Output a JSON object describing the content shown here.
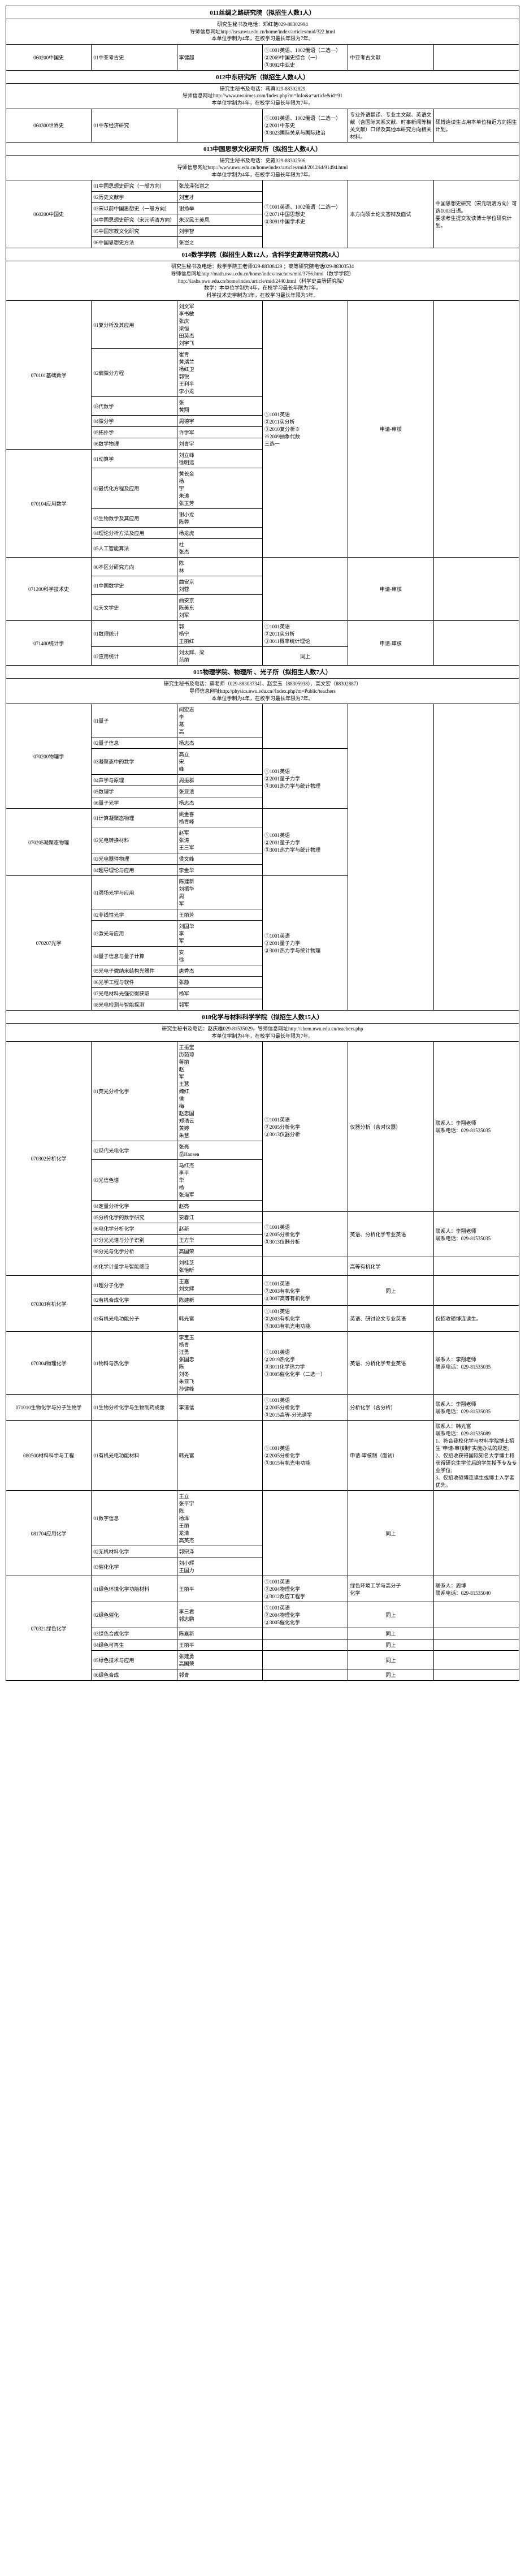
{
  "s011": {
    "title": "011丝绸之路研究院（拟招生人数1人）",
    "info": "研究生秘书及电话：邓红艳029-88302994\n导师信息网址http://isrs.nwu.edu.cn/home/index/articles/mid/322.html\n本单位学制为4年，在校学习最长年限为7年。",
    "code": "060200中国史",
    "r1_1": "01中亚考古史",
    "r1_2": "李健超",
    "r1_3": "①1001英语、1002俄语（二选一）\n②2069中国史综合（一）\n③3092中亚史",
    "r1_4": "中亚考古文献"
  },
  "s012": {
    "title": "012中东研究所（拟招生人数4人）",
    "info": "研究生秘书及电话：蒋真029-88302829\n导师信息网址http://www.nwuimes.com/Index.php?m=Info&a=article&id=91\n本单位学制为4年，在校学习最长年限为7年。",
    "code": "060300世界史",
    "r1_1": "01中东经济研究",
    "r1_2": "",
    "r1_3": "①1001英语、1002俄语（二选一）\n②2001中东史\n③3023国际关系与国际政治",
    "r1_4": "专业外语翻译、专业主文献、英语文献（含国际关系文献、时事新闻等相关文献）口译及其他本研究方向相关材料。",
    "r1_5": "硕博连读生占用本单位相近方向招生计划。"
  },
  "s013": {
    "title": "013中国思想文化研究所（拟招生人数4人）",
    "info": "研究生秘书及电话：史霞029-88302506\n导师信息网址http://www.nwu.edu.cn/home/index/articles/mid/2012/id/91494.html\n本单位学制为4年，在校学习最长年限为7年。",
    "code": "060200中国史",
    "rows": [
      {
        "c1": "01中国思想史研究（一般方向）",
        "c2": "张茂泽张岂之",
        "c3": "①1001英语、1002俄语（二选一）\n②2071中国思想史\n③3091中国学术史",
        "c4": "本方向硕士论文答辩及面试",
        "c5": "中国思想史研究（宋元明清方向）可选1003日语。\n要求考生提交攻读博士学位研究计划。"
      },
      {
        "c1": "02历史文献学",
        "c2": "刘宝才"
      },
      {
        "c1": "03宋以前中国思想史（一般方向）",
        "c2": "谢扬举"
      },
      {
        "c1": "04中国思想史研究（宋元明清方向）",
        "c2": "朱汉民王美凤"
      },
      {
        "c1": "05中国宗教文化研究",
        "c2": "刘学智"
      },
      {
        "c1": "06中国思想史方法",
        "c2": "张岂之"
      }
    ]
  },
  "s014": {
    "title": "014数学学院（拟招生人数12人，含科学史高等研究院4人）",
    "info": "研究生秘书及电话：数学学院王老师029-88308429 ；高等研究院电话029-88303534\n导师信息网址http://math.nwu.edu.cn/home/index/teachers/mid/3756.html（数学学院）\nhttp://iashs.nwu.edu.cn/home/index/article/mid/2440.html（科学史高等研究院）\n数学：本单位学制为4年，在校学习最长年限为7年。\n科学技术史学制为3年，在校学习最长年限为5年。",
    "groups": [
      {
        "code": "070101基础数学",
        "rows": [
          {
            "c1": "01复分析及其应用",
            "c2": "刘文军\n李书敏\n张庆\n梁恒\n田英杰\n刘宇飞",
            "c3": "",
            "c4": "",
            "c5": ""
          },
          {
            "c1": "02偏微分方程",
            "c2": "崔青\n黄瑞兰\n杨红卫\n郭锐\n王利平\n李小龙"
          },
          {
            "c1": "03代数学",
            "c2": "张\n黄翔"
          },
          {
            "c1": "04微分学",
            "c2": "周德宇"
          },
          {
            "c1": "05拓扑学",
            "c2": "许学军"
          },
          {
            "c1": "06数学物理",
            "c2": "刘青宇"
          }
        ]
      },
      {
        "code": "070104应用数学",
        "rows": [
          {
            "c1": "01动算学",
            "c2": "刘立峰\n徐明远",
            "c3": "①1001英语\n②2011实分析\n③2010复分析※\n※2009抽象代数\n三选一",
            "c4": "申请-审核",
            "c5": ""
          },
          {
            "c1": "02最优化方程及应用",
            "c2": "黄长金\n杨\n宇\n朱涛\n张玉芳"
          },
          {
            "c1": "03生物数学及其应用",
            "c2": "谢小龙\n陈蓉"
          },
          {
            "c1": "04理论分析方法及应用",
            "c2": "杨龙虎"
          },
          {
            "c1": "05人工智能算法",
            "c2": "杜\n张杰"
          }
        ]
      },
      {
        "code": "071200科学技术史",
        "rows": [
          {
            "c1": "00不区分研究方向",
            "c2": "陈\n林"
          },
          {
            "c1": "01中国数学史",
            "c2": "曲安京\n刘蓉",
            "c3": "",
            "c4": "申请-审核",
            "c5": ""
          },
          {
            "c1": "02天文学史",
            "c2": "曲安京\n陈美东\n刘军"
          }
        ]
      },
      {
        "code": "071400统计学",
        "rows": [
          {
            "c1": "01数理统计",
            "c2": "郭\n杨宁\n王丽红",
            "c3": "①1001英语\n②2011实分析\n③3011概率统计理论",
            "c4": "申请-审核",
            "c5": ""
          },
          {
            "c1": "02应用统计",
            "c2": "刘太辉、梁\n范丽",
            "c3": "同上",
            "c4": "",
            "c5": ""
          }
        ]
      }
    ]
  },
  "s015": {
    "title": "015物理学院、物理所 、光子所（拟招生人数7人）",
    "info": "研究生秘书及电话：薛老师（029-88303734）、赵宝玉（88305938）、高文宏（88302887）\n导师信息网址http://physics.nwu.edu.cn//Index.php?m=Public/teachers\n本单位学制为4年，在校学习最长年限为7年。",
    "groups": [
      {
        "code": "070200物理学",
        "rows": [
          {
            "c1": "01量子",
            "c2": "闫宏志\n李\n葛\n高",
            "c3": "",
            "c4": "",
            "c5": ""
          },
          {
            "c1": "02量子信息",
            "c2": "杨志杰"
          },
          {
            "c1": "03凝聚态中的数学",
            "c2": "高立\n宋\n峰",
            "c3": "①1001英语\n②2001量子力学\n③3001热力学与统计物理",
            "c4": "",
            "c5": ""
          },
          {
            "c1": "04声学与原理",
            "c2": "周振群"
          },
          {
            "c1": "05数理学",
            "c2": "张亚清"
          },
          {
            "c1": "06量子光学",
            "c2": "杨志杰"
          }
        ]
      },
      {
        "code": "070205凝聚态物理",
        "rows": [
          {
            "c1": "01计算凝聚态物理",
            "c2": "姚金喜\n杨青峰",
            "c3": "①1001英语\n②2001量子力学\n③3001热力学与统计物理",
            "c4": "",
            "c5": ""
          },
          {
            "c1": "02光电转换材料",
            "c2": "赵军\n张涛\n王三军"
          },
          {
            "c1": "03光电器件物理",
            "c2": "侯文峰"
          },
          {
            "c1": "04超导理论与应用",
            "c2": "李金华"
          }
        ]
      },
      {
        "code": "070207光学",
        "rows": [
          {
            "c1": "01强场光学与应用",
            "c2": "陈建新\n刘振华\n周\n军",
            "c3": "①1001英语\n②2001量子力学\n③3001热力学与统计物理",
            "c4": "",
            "c5": ""
          },
          {
            "c1": "02非线性光学",
            "c2": "王丽芳"
          },
          {
            "c1": "03激光与应用",
            "c2": "刘国华\n李\n军",
            "c4": ""
          },
          {
            "c1": "04量子信息与量子计算",
            "c2": "安\n徐",
            "c4": ""
          },
          {
            "c1": "05光电子微纳米结构光器件",
            "c2": "唐秀杰",
            "c4": ""
          },
          {
            "c1": "06光学工程与软件",
            "c2": "张静",
            "c4": ""
          },
          {
            "c1": "07光电材料光强衍衡获取",
            "c2": "杨军",
            "c4": ""
          },
          {
            "c1": "08光电检测与智能探测",
            "c2": "郭军",
            "c4": ""
          }
        ]
      }
    ]
  },
  "s018": {
    "title": "018化学与材料科学学院（拟招生人数15人）",
    "info": "研究生秘书及电话：赵庆雄029-81535029，导师信息网址http://chem.nwu.edu.cn/teachers.php\n本单位学制为4年，在校学习最长年限为7年。",
    "groups": [
      {
        "code": "070302分析化学",
        "rows": [
          {
            "c1": "01荧光分析化学",
            "c2": "王振堂\n历茹琼\n蒋丽\n赵\n军\n王慧\n魏红\n侯\n梅\n赵忠国\n郑浩云\n黄婷\n朱慧",
            "c3": "①1001英语\n②2005分析化学\n③3013仪器分析",
            "c4": "仪器分析（含对仪器）",
            "c5": "联系人：李翔老师\n联系电话：029-81535035"
          },
          {
            "c1": "02现代光电化学",
            "c2": "张亮\n岳Hansen"
          },
          {
            "c1": "03光信色谱",
            "c2": "马红杰\n李平\n华\n杨\n张海军"
          },
          {
            "c1": "04定量分析化学",
            "c2": "赵亮"
          },
          {
            "c1": "05分析化学的数学研究",
            "c2": "安春江",
            "c3": "①1001英语\n②2005分析化学\n③3013仪器分析",
            "c4": "英语、分析化学专业英语",
            "c5": "联系人：李翔老师\n联系电话：029-81535035"
          },
          {
            "c1": "06电化学分析化学",
            "c2": "赵新"
          },
          {
            "c1": "07分光光谱与分子识别",
            "c2": "王方华"
          },
          {
            "c1": "08分光与化学分析",
            "c2": "高国荣"
          },
          {
            "c1": "09化学计量学与智能感应",
            "c2": "刘桂芝\n张怡昕",
            "c4": "高等有机化学"
          }
        ]
      },
      {
        "code": "070303有机化学",
        "rows": [
          {
            "c1": "01超分子化学",
            "c2": "王嘉\n刘文辉",
            "c3": "①1001英语\n②2003有机化学\n③3007高等有机化学",
            "c4": "同上",
            "c5": ""
          },
          {
            "c1": "02有机合成化学",
            "c2": "陈建新"
          },
          {
            "c1": "03有机光电功能分子",
            "c2": "韩光富",
            "c3": "①1001英语\n②2003有机化学\n③3003有机光电功能",
            "c4": "英语、研讨论文专业英语",
            "c5": "仅招收硕博连读生。"
          }
        ]
      },
      {
        "code": "070304物理化学",
        "rows": [
          {
            "c1": "01物料与热化学",
            "c2": "李宝玉\n杨青\n汪勇\n张国忠\n陈\n刘冬\n朱亚飞\n孙健峰",
            "c3": "①1001英语\n②2019热化学\n③3011化学热力学\n③3005催化化学（二选一）",
            "c4": "英语、分析化学专业英语",
            "c5": "联系人：李翔老师\n联系电话：029-81535035"
          }
        ]
      },
      {
        "code": "071010生物化学与分子生物学",
        "rows": [
          {
            "c1": "01生物分析化学与生物制药成像",
            "c2": "李道信",
            "c3": "①1001英语\n②2005分析化学\n③2015高等-分光谱学",
            "c4": "分析化学（含分析）",
            "c5": "联系人：李翔老师\n联系电话：029-81535035"
          }
        ]
      },
      {
        "code": "080500材料科学与工程",
        "rows": [
          {
            "c1": "01有机光电功能材料",
            "c2": "韩光富",
            "c3": "①1001英语\n②2005分析化学\n③3015有机光电功能",
            "c4": "申请-审核制（面试）",
            "c5": "联系人：韩光富\n联系电话：029-81535089\n1、符合我校化学与材料学院博士招生\"申请-审核制\"实施办法的规定;\n2、仅招收获得国际知名大学博士和获得研究生学位后的学生授予专及专业学位;\n3、仅招收硕博连读生或博士入学者优先。"
          }
        ]
      },
      {
        "code": "081704应用化学",
        "rows": [
          {
            "c1": "01数字信息",
            "c2": "王立\n张平宇\n陈\n杨泽\n王丽\n龙清\n高英杰",
            "c3": "",
            "c4": "同上",
            "c5": ""
          },
          {
            "c1": "02无机材料化学",
            "c2": "郭宗泽"
          },
          {
            "c1": "03催化化学",
            "c2": "刘小辉\n王国力"
          }
        ]
      },
      {
        "code": "070321绿色化学",
        "rows": [
          {
            "c1": "01绿色环境化学功能材料",
            "c2": "王丽平",
            "c3": "①1001英语\n②2004物理化学\n③3012反应工程学",
            "c4": "绿色环境工学与高分子\n化学",
            "c5": "联系人：周博\n联系电话：029-81535040"
          },
          {
            "c1": "02绿色催化",
            "c2": "李三君\n郭志鹏",
            "c3": "①1001英语\n②2004物理化学\n③3005催化化学",
            "c4": "同上"
          },
          {
            "c1": "03绿色合成化学",
            "c2": "陈嘉新",
            "c3": "",
            "c4": "同上"
          },
          {
            "c1": "04绿色可再生",
            "c2": "王丽平",
            "c3": "",
            "c4": "同上"
          },
          {
            "c1": "05绿色技术与应用",
            "c2": "张建勇\n高国荣",
            "c3": "",
            "c4": "同上"
          },
          {
            "c1": "06绿色合成",
            "c2": "郭青",
            "c3": "",
            "c4": "同上"
          }
        ]
      }
    ]
  }
}
